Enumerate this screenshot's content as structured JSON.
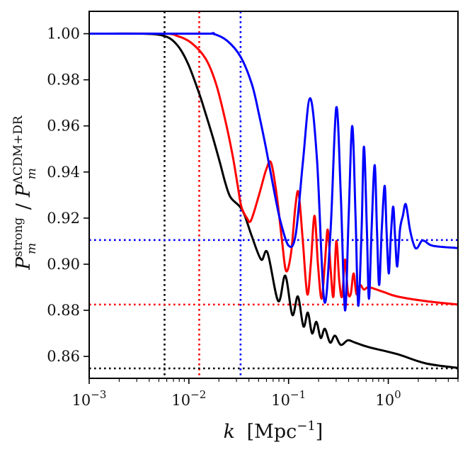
{
  "chart_data": {
    "type": "line",
    "title": "",
    "xlabel": {
      "var": "k",
      "unit": "Mpc",
      "exp": "−1"
    },
    "ylabel": {
      "num": "P",
      "num_sub": "m",
      "num_sup": "strong",
      "den": "P",
      "den_sub": "m",
      "den_sup": "ΛCDM+DR"
    },
    "xscale": "log",
    "xlim": [
      0.001,
      5.0
    ],
    "ylim": [
      0.8505,
      1.0097
    ],
    "grid": false,
    "legend": "none",
    "x_ticks": [
      {
        "value": 0.001,
        "base": "10",
        "exp": "−3"
      },
      {
        "value": 0.01,
        "base": "10",
        "exp": "−2"
      },
      {
        "value": 0.1,
        "base": "10",
        "exp": "−1"
      },
      {
        "value": 1.0,
        "base": "10",
        "exp": "0"
      }
    ],
    "y_ticks": [
      {
        "value": 1.0,
        "label": "1.00"
      },
      {
        "value": 0.98,
        "label": "0.98"
      },
      {
        "value": 0.96,
        "label": "0.96"
      },
      {
        "value": 0.94,
        "label": "0.94"
      },
      {
        "value": 0.92,
        "label": "0.92"
      },
      {
        "value": 0.9,
        "label": "0.90"
      },
      {
        "value": 0.88,
        "label": "0.88"
      },
      {
        "value": 0.86,
        "label": "0.86"
      }
    ],
    "series": [
      {
        "name": "black",
        "color": "#000000",
        "k": [
          0.001,
          0.00337,
          0.0057,
          0.00766,
          0.0098,
          0.0127,
          0.0148,
          0.0174,
          0.0205,
          0.0233,
          0.0262,
          0.0324,
          0.0364,
          0.0429,
          0.0531,
          0.0615,
          0.0787,
          0.0927,
          0.109,
          0.124,
          0.141,
          0.156,
          0.172,
          0.19,
          0.21,
          0.231,
          0.261,
          0.292,
          0.334,
          0.393,
          0.464,
          0.64,
          1.23,
          2.37,
          5.0
        ],
        "values": [
          1.0,
          1.0,
          0.999,
          0.995,
          0.987,
          0.974,
          0.965,
          0.955,
          0.944,
          0.935,
          0.929,
          0.925,
          0.921,
          0.912,
          0.902,
          0.905,
          0.884,
          0.895,
          0.878,
          0.886,
          0.873,
          0.879,
          0.87,
          0.875,
          0.868,
          0.872,
          0.866,
          0.869,
          0.865,
          0.867,
          0.866,
          0.864,
          0.861,
          0.857,
          0.855
        ]
      },
      {
        "name": "red",
        "color": "#ff0000",
        "k": [
          0.001,
          0.0055,
          0.00766,
          0.0106,
          0.0148,
          0.0188,
          0.0233,
          0.0275,
          0.0309,
          0.0336,
          0.0382,
          0.042,
          0.0505,
          0.0596,
          0.0668,
          0.076,
          0.086,
          0.0946,
          0.106,
          0.117,
          0.126,
          0.139,
          0.154,
          0.167,
          0.182,
          0.197,
          0.214,
          0.231,
          0.247,
          0.264,
          0.282,
          0.301,
          0.322,
          0.344,
          0.368,
          0.393,
          0.42,
          0.449,
          0.48,
          0.52,
          0.57,
          0.64,
          0.89,
          1.23,
          2.37,
          5.0
        ],
        "values": [
          1.0,
          1.0,
          0.999,
          0.996,
          0.989,
          0.978,
          0.962,
          0.947,
          0.934,
          0.925,
          0.92,
          0.919,
          0.93,
          0.941,
          0.944,
          0.93,
          0.91,
          0.897,
          0.905,
          0.925,
          0.931,
          0.91,
          0.887,
          0.9,
          0.921,
          0.9,
          0.885,
          0.9,
          0.915,
          0.898,
          0.886,
          0.91,
          0.893,
          0.886,
          0.902,
          0.888,
          0.887,
          0.896,
          0.887,
          0.891,
          0.889,
          0.89,
          0.888,
          0.886,
          0.884,
          0.8825
        ]
      },
      {
        "name": "blue",
        "color": "#0000ff",
        "k": [
          0.001,
          0.0137,
          0.0174,
          0.0241,
          0.033,
          0.0429,
          0.0505,
          0.0596,
          0.07,
          0.0825,
          0.1003,
          0.118,
          0.139,
          0.164,
          0.193,
          0.228,
          0.264,
          0.301,
          0.334,
          0.368,
          0.4,
          0.435,
          0.47,
          0.5,
          0.54,
          0.57,
          0.61,
          0.64,
          0.68,
          0.73,
          0.77,
          0.81,
          0.86,
          0.92,
          0.96,
          1.01,
          1.06,
          1.12,
          1.17,
          1.23,
          1.31,
          1.4,
          1.5,
          1.65,
          1.82,
          1.95,
          2.15,
          2.33,
          2.8,
          5.0
        ],
        "values": [
          1.0,
          1.0,
          1.0,
          0.997,
          0.99,
          0.978,
          0.965,
          0.95,
          0.934,
          0.919,
          0.908,
          0.913,
          0.944,
          0.972,
          0.945,
          0.884,
          0.915,
          0.968,
          0.93,
          0.88,
          0.92,
          0.96,
          0.92,
          0.882,
          0.915,
          0.951,
          0.915,
          0.885,
          0.915,
          0.943,
          0.915,
          0.891,
          0.915,
          0.934,
          0.915,
          0.896,
          0.912,
          0.925,
          0.912,
          0.899,
          0.915,
          0.921,
          0.926,
          0.915,
          0.908,
          0.907,
          0.91,
          0.91,
          0.908,
          0.907
        ]
      }
    ],
    "reference_lines": {
      "vertical": [
        {
          "k": 0.0057,
          "color": "#000000"
        },
        {
          "k": 0.0127,
          "color": "#ff0000"
        },
        {
          "k": 0.033,
          "color": "#0000ff"
        }
      ],
      "horizontal": [
        {
          "value": 0.9105,
          "color": "#0000ff"
        },
        {
          "value": 0.8825,
          "color": "#ff0000"
        },
        {
          "value": 0.8548,
          "color": "#000000"
        }
      ]
    }
  }
}
